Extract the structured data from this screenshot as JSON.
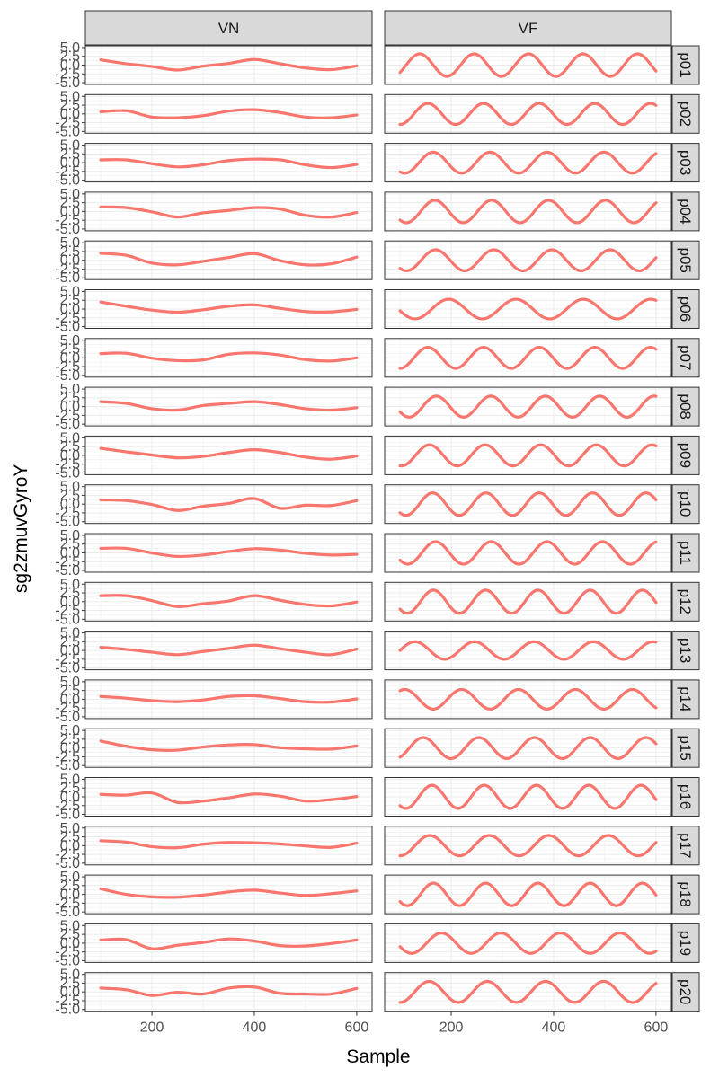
{
  "chart_data": {
    "type": "line",
    "layout": "facet-grid",
    "xlabel": "Sample",
    "ylabel": "sg2zmuvGyroY",
    "columns": [
      "VN",
      "VF"
    ],
    "rows": [
      "p01",
      "p02",
      "p03",
      "p04",
      "p05",
      "p06",
      "p07",
      "p08",
      "p09",
      "p10",
      "p11",
      "p12",
      "p13",
      "p14",
      "p15",
      "p16",
      "p17",
      "p18",
      "p19",
      "p20"
    ],
    "xlim": [
      70,
      630
    ],
    "ylim": [
      -5.5,
      5.5
    ],
    "x_ticks": [
      200,
      400,
      600
    ],
    "x_tick_labels": [
      "200",
      "400",
      "600"
    ],
    "y_ticks": [
      -5,
      -2.5,
      0,
      2.5,
      5
    ],
    "y_tick_labels": [
      "-5.0",
      "-2.5",
      "0.0",
      "2.5",
      "5.0"
    ],
    "grid": true,
    "line_color": "#F8766D",
    "x_sample_points": [
      100,
      150,
      200,
      250,
      300,
      350,
      400,
      450,
      500,
      550,
      600
    ],
    "VN": {
      "p01": [
        1.5,
        0.4,
        -0.4,
        -1.4,
        -0.3,
        0.5,
        1.6,
        0.4,
        -0.8,
        -1.3,
        -0.2
      ],
      "p02": [
        0.6,
        0.9,
        -0.9,
        -1.1,
        -0.5,
        0.8,
        1.2,
        0.4,
        -0.9,
        -1.1,
        -0.3
      ],
      "p03": [
        0.8,
        0.8,
        -0.3,
        -1.2,
        -0.6,
        0.6,
        1.0,
        0.8,
        -0.6,
        -1.4,
        -0.5
      ],
      "p04": [
        1.3,
        1.1,
        -0.1,
        -1.6,
        -0.4,
        0.3,
        1.1,
        0.7,
        -1.1,
        -1.6,
        -0.3
      ],
      "p05": [
        2.0,
        1.4,
        -0.8,
        -1.3,
        -0.3,
        0.8,
        1.9,
        -0.1,
        -1.3,
        -1.0,
        0.9
      ],
      "p06": [
        2.0,
        0.8,
        -0.3,
        -0.9,
        -0.2,
        0.8,
        1.2,
        0.2,
        -0.7,
        -0.8,
        -0.1
      ],
      "p07": [
        1.2,
        1.3,
        -0.1,
        -0.8,
        -0.6,
        1.0,
        1.4,
        0.8,
        -0.5,
        -0.9,
        0.0
      ],
      "p08": [
        1.4,
        0.9,
        -0.6,
        -1.0,
        0.3,
        0.9,
        1.4,
        0.6,
        -0.6,
        -1.0,
        -0.3
      ],
      "p09": [
        2.0,
        1.0,
        0.1,
        -0.7,
        -0.3,
        0.8,
        1.6,
        0.8,
        -0.5,
        -1.1,
        -0.2
      ],
      "p10": [
        1.2,
        1.0,
        -0.1,
        -1.8,
        -0.6,
        0.2,
        1.6,
        -1.2,
        -0.3,
        -0.4,
        1.0
      ],
      "p11": [
        1.3,
        1.3,
        0.0,
        -1.0,
        -0.6,
        0.4,
        1.2,
        0.8,
        -0.1,
        -0.6,
        -0.4
      ],
      "p12": [
        1.7,
        1.7,
        0.3,
        -1.4,
        -0.6,
        0.2,
        1.7,
        0.4,
        -0.8,
        -1.2,
        -0.1
      ],
      "p13": [
        0.9,
        0.3,
        -0.5,
        -1.2,
        -0.3,
        0.6,
        1.5,
        0.5,
        -0.5,
        -1.2,
        0.4
      ],
      "p14": [
        0.8,
        0.3,
        -0.4,
        -0.7,
        -0.2,
        0.8,
        1.0,
        0.2,
        -0.7,
        -0.8,
        0.1
      ],
      "p15": [
        2.0,
        0.5,
        -0.5,
        -0.6,
        0.3,
        0.9,
        1.0,
        0.1,
        -0.2,
        -0.3,
        0.6
      ],
      "p16": [
        0.7,
        0.5,
        1.1,
        -1.6,
        -1.2,
        -0.3,
        0.8,
        0.2,
        -1.2,
        -0.8,
        0.1
      ],
      "p17": [
        1.4,
        1.0,
        -0.3,
        -0.6,
        0.4,
        0.9,
        0.8,
        0.5,
        -0.1,
        -0.5,
        0.7
      ],
      "p18": [
        1.6,
        0.0,
        -0.7,
        -0.8,
        -0.2,
        0.7,
        1.2,
        0.4,
        -0.3,
        0.2,
        1.0
      ],
      "p19": [
        0.9,
        1.0,
        -1.6,
        -0.6,
        0.2,
        1.2,
        0.6,
        -0.7,
        -0.8,
        -0.1,
        0.9
      ],
      "p20": [
        1.1,
        0.6,
        -1.0,
        -0.1,
        -0.6,
        1.1,
        1.4,
        -0.4,
        -0.6,
        -0.6,
        1.0
      ]
    },
    "VF": {
      "p01": {
        "amplitude": 3.2,
        "phase_deg": -40,
        "cycles": 4.7
      },
      "p02": {
        "amplitude": 3.0,
        "phase_deg": -90,
        "cycles": 4.6
      },
      "p03": {
        "amplitude": 3.0,
        "phase_deg": -120,
        "cycles": 4.5
      },
      "p04": {
        "amplitude": 3.2,
        "phase_deg": -130,
        "cycles": 4.5
      },
      "p05": {
        "amplitude": 3.0,
        "phase_deg": -130,
        "cycles": 4.4
      },
      "p06": {
        "amplitude": 2.8,
        "phase_deg": -170,
        "cycles": 3.8
      },
      "p07": {
        "amplitude": 3.0,
        "phase_deg": -90,
        "cycles": 4.6
      },
      "p08": {
        "amplitude": 3.0,
        "phase_deg": -150,
        "cycles": 4.7
      },
      "p09": {
        "amplitude": 3.0,
        "phase_deg": -100,
        "cycles": 4.6
      },
      "p10": {
        "amplitude": 3.2,
        "phase_deg": -130,
        "cycles": 4.8
      },
      "p11": {
        "amplitude": 3.2,
        "phase_deg": -140,
        "cycles": 4.6
      },
      "p12": {
        "amplitude": 3.3,
        "phase_deg": -140,
        "cycles": 4.9
      },
      "p13": {
        "amplitude": 2.5,
        "phase_deg": 0,
        "cycles": 4.3
      },
      "p14": {
        "amplitude": 2.8,
        "phase_deg": 60,
        "cycles": 4.5
      },
      "p15": {
        "amplitude": 3.0,
        "phase_deg": -60,
        "cycles": 4.6
      },
      "p16": {
        "amplitude": 3.3,
        "phase_deg": -130,
        "cycles": 4.9
      },
      "p17": {
        "amplitude": 2.9,
        "phase_deg": -90,
        "cycles": 4.3
      },
      "p18": {
        "amplitude": 3.2,
        "phase_deg": -140,
        "cycles": 4.9
      },
      "p19": {
        "amplitude": 2.9,
        "phase_deg": -160,
        "cycles": 4.3
      },
      "p20": {
        "amplitude": 3.0,
        "phase_deg": -90,
        "cycles": 4.4
      }
    }
  }
}
